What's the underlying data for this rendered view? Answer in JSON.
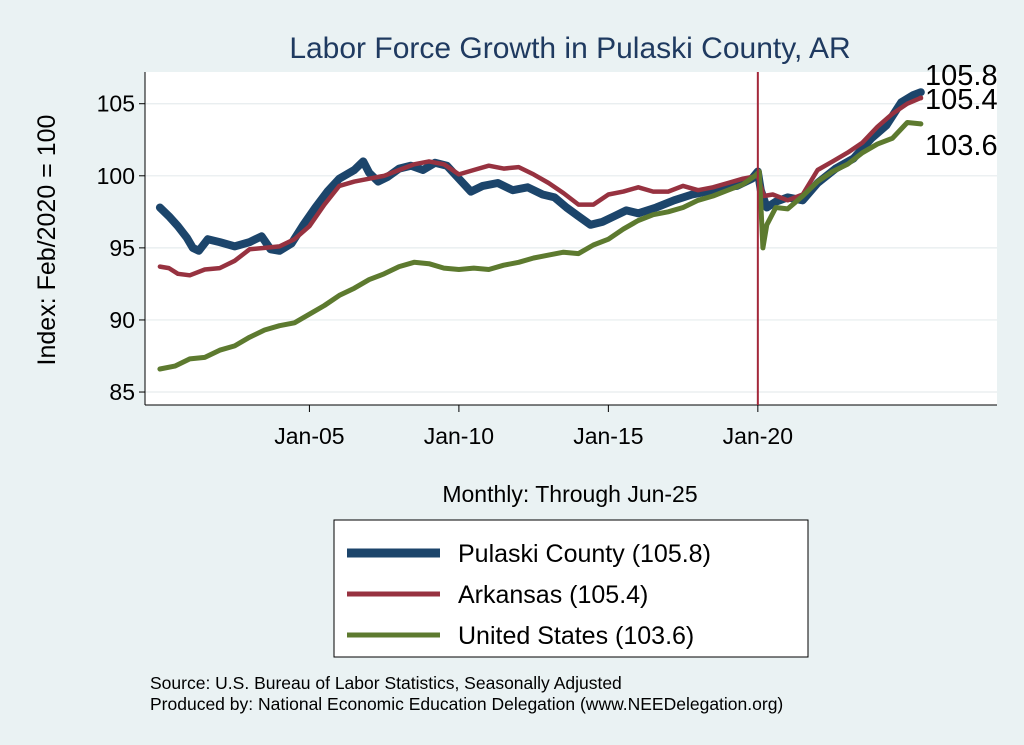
{
  "chart_data": {
    "type": "line",
    "title": "Labor Force Growth in Pulaski  County, AR",
    "ylabel": "Index: Feb/2020 = 100",
    "xlabel": "Monthly: Through Jun-25",
    "x_ticks": [
      {
        "label": "Jan-05",
        "value": 2005.0
      },
      {
        "label": "Jan-10",
        "value": 2010.0
      },
      {
        "label": "Jan-15",
        "value": 2015.0
      },
      {
        "label": "Jan-20",
        "value": 2020.0
      }
    ],
    "y_ticks": [
      {
        "label": "85",
        "value": 85
      },
      {
        "label": "90",
        "value": 90
      },
      {
        "label": "95",
        "value": 95
      },
      {
        "label": "100",
        "value": 100
      },
      {
        "label": "105",
        "value": 105
      }
    ],
    "xlim": [
      1999.5,
      2028.0
    ],
    "ylim": [
      84.1,
      107.2
    ],
    "grid": true,
    "reference_line": {
      "x": 2020.0,
      "color": "#a3283a"
    },
    "legend_position": "bottom",
    "series": [
      {
        "name": "Pulaski  County (105.8)",
        "color": "#1c456b",
        "end_label": "105.8",
        "points": [
          [
            2000.0,
            97.8
          ],
          [
            2000.3,
            97.2
          ],
          [
            2000.6,
            96.5
          ],
          [
            2000.9,
            95.7
          ],
          [
            2001.1,
            95.0
          ],
          [
            2001.3,
            94.8
          ],
          [
            2001.6,
            95.6
          ],
          [
            2002.0,
            95.4
          ],
          [
            2002.5,
            95.1
          ],
          [
            2003.0,
            95.4
          ],
          [
            2003.4,
            95.8
          ],
          [
            2003.7,
            94.9
          ],
          [
            2004.0,
            94.8
          ],
          [
            2004.4,
            95.3
          ],
          [
            2004.8,
            96.6
          ],
          [
            2005.2,
            97.8
          ],
          [
            2005.6,
            98.9
          ],
          [
            2006.0,
            99.8
          ],
          [
            2006.5,
            100.4
          ],
          [
            2006.8,
            101.0
          ],
          [
            2007.0,
            100.2
          ],
          [
            2007.3,
            99.6
          ],
          [
            2007.6,
            99.9
          ],
          [
            2008.0,
            100.5
          ],
          [
            2008.4,
            100.7
          ],
          [
            2008.8,
            100.4
          ],
          [
            2009.2,
            100.9
          ],
          [
            2009.6,
            100.7
          ],
          [
            2010.0,
            99.8
          ],
          [
            2010.4,
            98.9
          ],
          [
            2010.8,
            99.3
          ],
          [
            2011.3,
            99.5
          ],
          [
            2011.8,
            99.0
          ],
          [
            2012.3,
            99.2
          ],
          [
            2012.8,
            98.7
          ],
          [
            2013.2,
            98.5
          ],
          [
            2013.6,
            97.8
          ],
          [
            2014.0,
            97.2
          ],
          [
            2014.4,
            96.6
          ],
          [
            2014.8,
            96.8
          ],
          [
            2015.2,
            97.2
          ],
          [
            2015.6,
            97.6
          ],
          [
            2016.0,
            97.4
          ],
          [
            2016.6,
            97.8
          ],
          [
            2017.2,
            98.3
          ],
          [
            2017.8,
            98.7
          ],
          [
            2018.3,
            98.9
          ],
          [
            2018.8,
            99.2
          ],
          [
            2019.3,
            99.3
          ],
          [
            2019.8,
            99.8
          ],
          [
            2020.0,
            100.3
          ],
          [
            2020.1,
            99.0
          ],
          [
            2020.3,
            97.8
          ],
          [
            2020.6,
            98.2
          ],
          [
            2021.0,
            98.5
          ],
          [
            2021.5,
            98.3
          ],
          [
            2022.0,
            99.5
          ],
          [
            2022.6,
            100.5
          ],
          [
            2023.2,
            101.2
          ],
          [
            2023.8,
            102.6
          ],
          [
            2024.3,
            103.5
          ],
          [
            2024.8,
            105.1
          ],
          [
            2025.2,
            105.6
          ],
          [
            2025.45,
            105.8
          ]
        ]
      },
      {
        "name": "Arkansas (105.4)",
        "color": "#973240",
        "end_label": "105.4",
        "points": [
          [
            2000.0,
            93.7
          ],
          [
            2000.3,
            93.6
          ],
          [
            2000.6,
            93.2
          ],
          [
            2001.0,
            93.1
          ],
          [
            2001.5,
            93.5
          ],
          [
            2002.0,
            93.6
          ],
          [
            2002.5,
            94.1
          ],
          [
            2003.0,
            94.9
          ],
          [
            2003.5,
            95.0
          ],
          [
            2004.0,
            95.1
          ],
          [
            2004.5,
            95.6
          ],
          [
            2005.0,
            96.5
          ],
          [
            2005.5,
            98.0
          ],
          [
            2006.0,
            99.3
          ],
          [
            2006.5,
            99.6
          ],
          [
            2007.0,
            99.8
          ],
          [
            2007.5,
            100.0
          ],
          [
            2008.0,
            100.4
          ],
          [
            2008.5,
            100.8
          ],
          [
            2009.0,
            101.0
          ],
          [
            2009.5,
            100.8
          ],
          [
            2010.0,
            100.1
          ],
          [
            2010.5,
            100.4
          ],
          [
            2011.0,
            100.7
          ],
          [
            2011.5,
            100.5
          ],
          [
            2012.0,
            100.6
          ],
          [
            2012.5,
            100.1
          ],
          [
            2013.0,
            99.5
          ],
          [
            2013.5,
            98.8
          ],
          [
            2014.0,
            98.0
          ],
          [
            2014.5,
            98.0
          ],
          [
            2015.0,
            98.7
          ],
          [
            2015.5,
            98.9
          ],
          [
            2016.0,
            99.2
          ],
          [
            2016.5,
            98.9
          ],
          [
            2017.0,
            98.9
          ],
          [
            2017.5,
            99.3
          ],
          [
            2018.0,
            99.0
          ],
          [
            2018.5,
            99.2
          ],
          [
            2019.0,
            99.5
          ],
          [
            2019.5,
            99.8
          ],
          [
            2020.0,
            100.0
          ],
          [
            2020.2,
            98.6
          ],
          [
            2020.5,
            98.7
          ],
          [
            2021.0,
            98.3
          ],
          [
            2021.5,
            98.7
          ],
          [
            2022.0,
            100.4
          ],
          [
            2022.5,
            101.0
          ],
          [
            2023.0,
            101.6
          ],
          [
            2023.5,
            102.3
          ],
          [
            2024.0,
            103.4
          ],
          [
            2024.5,
            104.3
          ],
          [
            2025.0,
            105.0
          ],
          [
            2025.45,
            105.4
          ]
        ]
      },
      {
        "name": "United States (103.6)",
        "color": "#5d7a2f",
        "end_label": "103.6",
        "points": [
          [
            2000.0,
            86.6
          ],
          [
            2000.5,
            86.8
          ],
          [
            2001.0,
            87.3
          ],
          [
            2001.5,
            87.4
          ],
          [
            2002.0,
            87.9
          ],
          [
            2002.5,
            88.2
          ],
          [
            2003.0,
            88.8
          ],
          [
            2003.5,
            89.3
          ],
          [
            2004.0,
            89.6
          ],
          [
            2004.5,
            89.8
          ],
          [
            2005.0,
            90.4
          ],
          [
            2005.5,
            91.0
          ],
          [
            2006.0,
            91.7
          ],
          [
            2006.5,
            92.2
          ],
          [
            2007.0,
            92.8
          ],
          [
            2007.5,
            93.2
          ],
          [
            2008.0,
            93.7
          ],
          [
            2008.5,
            94.0
          ],
          [
            2009.0,
            93.9
          ],
          [
            2009.5,
            93.6
          ],
          [
            2010.0,
            93.5
          ],
          [
            2010.5,
            93.6
          ],
          [
            2011.0,
            93.5
          ],
          [
            2011.5,
            93.8
          ],
          [
            2012.0,
            94.0
          ],
          [
            2012.5,
            94.3
          ],
          [
            2013.0,
            94.5
          ],
          [
            2013.5,
            94.7
          ],
          [
            2014.0,
            94.6
          ],
          [
            2014.5,
            95.2
          ],
          [
            2015.0,
            95.6
          ],
          [
            2015.5,
            96.3
          ],
          [
            2016.0,
            96.9
          ],
          [
            2016.5,
            97.3
          ],
          [
            2017.0,
            97.5
          ],
          [
            2017.5,
            97.8
          ],
          [
            2018.0,
            98.3
          ],
          [
            2018.5,
            98.6
          ],
          [
            2019.0,
            99.0
          ],
          [
            2019.5,
            99.4
          ],
          [
            2019.9,
            100.0
          ],
          [
            2020.05,
            100.3
          ],
          [
            2020.17,
            95.0
          ],
          [
            2020.3,
            96.6
          ],
          [
            2020.6,
            97.8
          ],
          [
            2021.0,
            97.7
          ],
          [
            2021.5,
            98.6
          ],
          [
            2022.0,
            99.6
          ],
          [
            2022.5,
            100.3
          ],
          [
            2023.0,
            100.8
          ],
          [
            2023.5,
            101.6
          ],
          [
            2024.0,
            102.2
          ],
          [
            2024.5,
            102.6
          ],
          [
            2025.0,
            103.7
          ],
          [
            2025.45,
            103.6
          ]
        ]
      }
    ],
    "source_lines": [
      "Source: U.S. Bureau of Labor Statistics, Seasonally Adjusted",
      "Produced by: National Economic Education Delegation (www.NEEDelegation.org)"
    ]
  }
}
